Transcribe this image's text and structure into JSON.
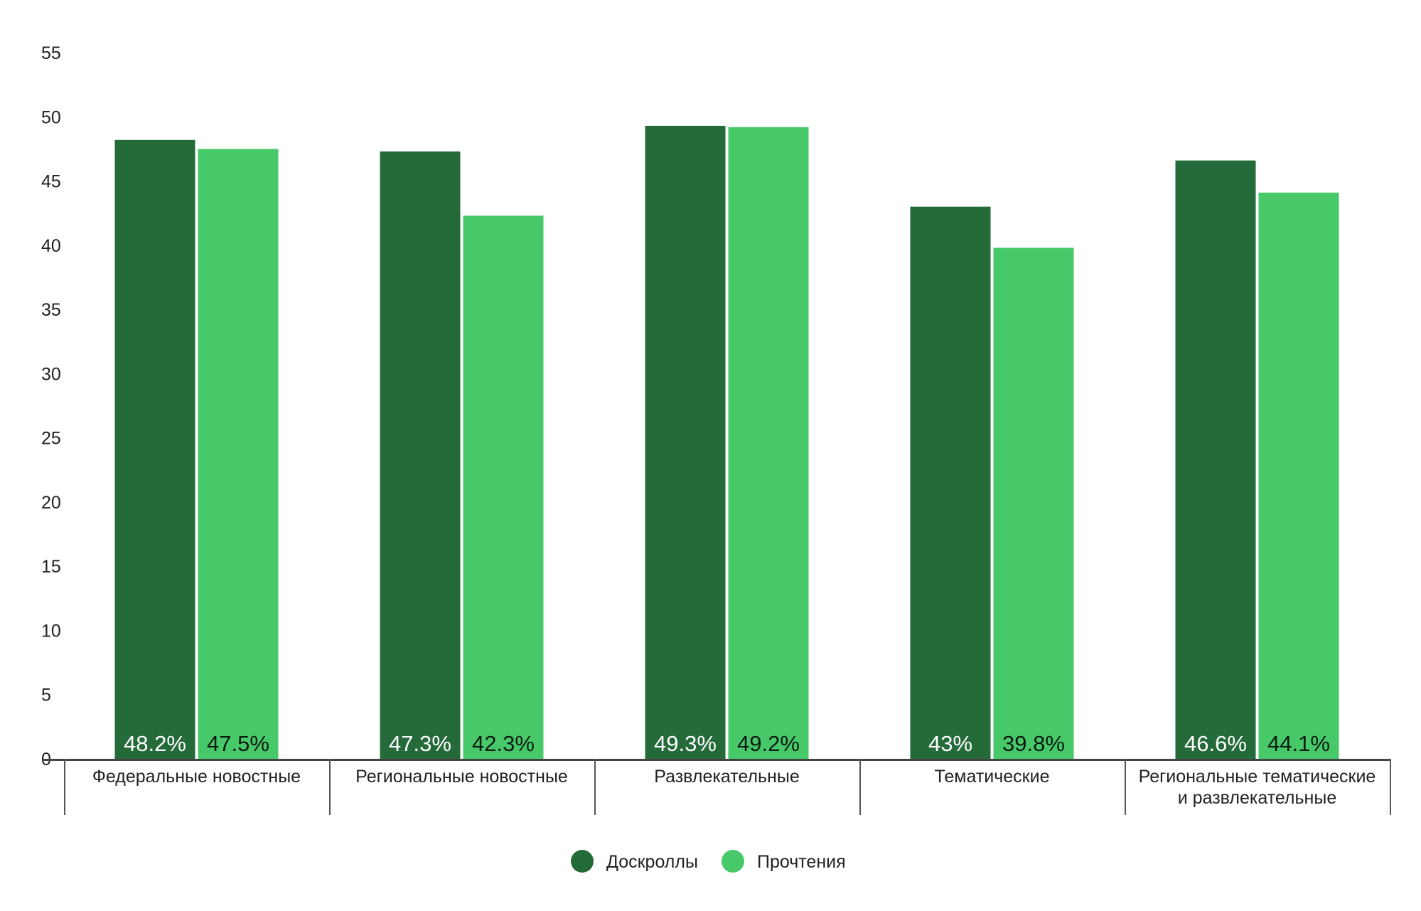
{
  "chart_data": {
    "type": "bar",
    "categories": [
      [
        "Федеральные новостные"
      ],
      [
        "Региональные новостные"
      ],
      [
        "Развлекательные"
      ],
      [
        "Тематические"
      ],
      [
        "Региональные тематические",
        "и развлекательные"
      ]
    ],
    "series": [
      {
        "name": "Доскроллы",
        "color": "#256b3a",
        "label_color": "#ffffff",
        "values": [
          48.2,
          47.3,
          49.3,
          43,
          46.6
        ],
        "labels": [
          "48.2%",
          "47.3%",
          "49.3%",
          "43%",
          "46.6%"
        ]
      },
      {
        "name": "Прочтения",
        "color": "#47c96a",
        "label_color": "#0b1a10",
        "values": [
          47.5,
          42.3,
          49.2,
          39.8,
          44.1
        ],
        "labels": [
          "47.5%",
          "42.3%",
          "49.2%",
          "39.8%",
          "44.1%"
        ]
      }
    ],
    "y_ticks": [
      "0",
      "5",
      "10",
      "15",
      "20",
      "25",
      "30",
      "35",
      "40",
      "45",
      "50",
      "55"
    ],
    "ylim": [
      0,
      55
    ],
    "grid": false,
    "legend_position": "bottom-center",
    "axis_color": "#555555"
  }
}
